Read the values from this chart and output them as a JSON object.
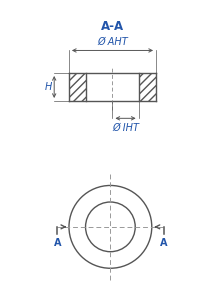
{
  "bg_color": "#ffffff",
  "line_color": "#555555",
  "text_color": "#2255aa",
  "hatch_color": "#555555",
  "dash_color": "#999999",
  "title_aa": "A-A",
  "label_aht": "Ø AHT",
  "label_iht": "Ø IHT",
  "label_h": "H",
  "label_a_left": "A",
  "label_a_right": "A",
  "section_title_fontsize": 8.5,
  "dim_fontsize": 7.0,
  "annot_fontsize": 7.0,
  "lw_main": 1.0,
  "lw_dim": 0.7,
  "lw_hatch": 0.4
}
